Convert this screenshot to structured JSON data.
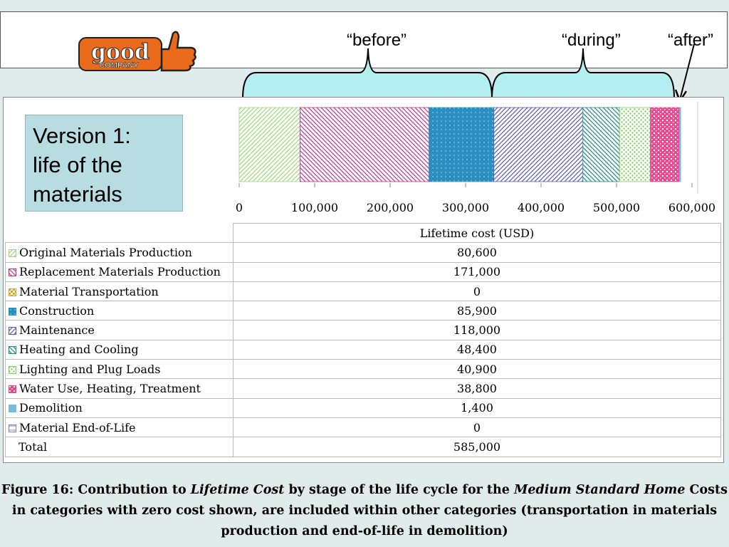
{
  "banner": {
    "logo": {
      "word_top": "good",
      "word_bottom": "COMPANY",
      "thumb_icon": "thumbs-up-icon"
    },
    "stages": [
      {
        "label": "“before”",
        "color": "#b3eff0"
      },
      {
        "label": "“during”",
        "color": "#b3eff0"
      },
      {
        "label": "“after”"
      }
    ]
  },
  "version_box": {
    "lines": [
      "Version 1:",
      "life of the",
      "materials"
    ]
  },
  "table": {
    "header": "Lifetime cost (USD)",
    "total_label": "Total",
    "total_value": "585,000"
  },
  "chart_data": {
    "type": "bar",
    "orientation": "horizontal",
    "stacked": true,
    "xlim": [
      0,
      600000
    ],
    "x_ticks": [
      "0",
      "100,000",
      "200,000",
      "300,000",
      "400,000",
      "500,000",
      "600,000"
    ],
    "x_tick_values": [
      0,
      100000,
      200000,
      300000,
      400000,
      500000,
      600000
    ],
    "xlabel": "Lifetime cost (USD)",
    "series": [
      {
        "name": "Original Materials Production",
        "value": 80600,
        "label": "80,600",
        "color": "#9fd67a",
        "pattern": "diag-right"
      },
      {
        "name": "Replacement Materials Production",
        "value": 171000,
        "label": "171,000",
        "color": "#c0328b",
        "pattern": "diag-left"
      },
      {
        "name": "Material Transportation",
        "value": 0,
        "label": "0",
        "color": "#e0a020",
        "pattern": "checker"
      },
      {
        "name": "Construction",
        "value": 85900,
        "label": "85,900",
        "color": "#2a8fc0",
        "pattern": "solid-dots"
      },
      {
        "name": "Maintenance",
        "value": 118000,
        "label": "118,000",
        "color": "#5a5aa8",
        "pattern": "diag-right"
      },
      {
        "name": "Heating and Cooling",
        "value": 48400,
        "label": "48,400",
        "color": "#1e8c80",
        "pattern": "diag-left"
      },
      {
        "name": "Lighting and Plug Loads",
        "value": 40900,
        "label": "40,900",
        "color": "#7fd060",
        "pattern": "dots"
      },
      {
        "name": "Water Use, Heating, Treatment",
        "value": 38800,
        "label": "38,800",
        "color": "#e84c90",
        "pattern": "grid"
      },
      {
        "name": "Demolition",
        "value": 1400,
        "label": "1,400",
        "color": "#7ab8dc",
        "pattern": "solid"
      },
      {
        "name": "Material End-of-Life",
        "value": 0,
        "label": "0",
        "color": "#8080c0",
        "pattern": "hlines"
      }
    ]
  },
  "caption": {
    "prefix": "Figure 16: Contribution to ",
    "italic1": "Lifetime Cost",
    "middle": " by stage of the life cycle for the ",
    "italic2": "Medium Standard Home",
    "rest": " Costs in categories with zero cost shown, are included within other categories (transportation in materials production and end-of-life in demolition)"
  }
}
